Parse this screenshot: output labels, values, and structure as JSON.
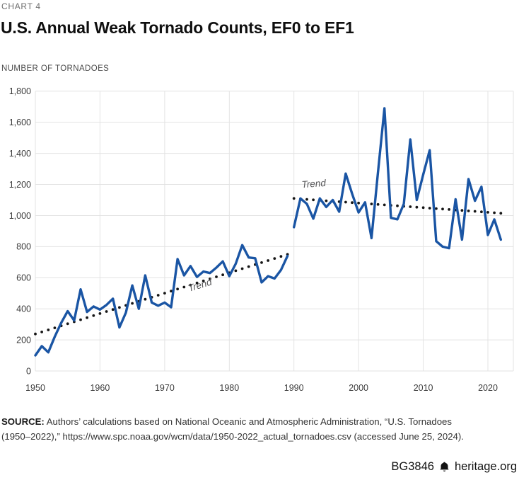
{
  "header": {
    "chart_label": "CHART 4",
    "title": "U.S. Annual Weak Tornado Counts, EF0 to EF1",
    "axis_title": "NUMBER OF TORNADOES"
  },
  "chart_data": {
    "type": "line",
    "title": "U.S. Annual Weak Tornado Counts, EF0 to EF1",
    "ylabel": "NUMBER OF TORNADOES",
    "ylim": [
      0,
      1800
    ],
    "ytick_step": 200,
    "xticks": [
      1950,
      1960,
      1970,
      1980,
      1990,
      2000,
      2010,
      2020
    ],
    "grid": true,
    "legend_position": "none",
    "line_color": "#1a55a4",
    "trend_dot_color": "#151515",
    "series": [
      {
        "name": "weak-tornado-count-1950-1989",
        "x_start": 1950,
        "values": [
          100,
          160,
          120,
          220,
          310,
          385,
          325,
          525,
          380,
          415,
          395,
          425,
          465,
          280,
          375,
          550,
          400,
          615,
          440,
          420,
          440,
          410,
          720,
          615,
          675,
          605,
          640,
          630,
          665,
          705,
          610,
          690,
          810,
          730,
          725,
          570,
          610,
          595,
          650,
          740
        ]
      },
      {
        "name": "weak-tornado-count-1990-2022",
        "x_start": 1990,
        "values": [
          925,
          1110,
          1075,
          980,
          1110,
          1055,
          1100,
          1025,
          1270,
          1140,
          1020,
          1085,
          855,
          1280,
          1690,
          985,
          975,
          1075,
          1490,
          1100,
          1265,
          1420,
          835,
          800,
          790,
          1105,
          845,
          1235,
          1095,
          1185,
          875,
          975,
          845
        ]
      }
    ],
    "trends": [
      {
        "label": "Trend",
        "x": [
          1950,
          1989
        ],
        "y": [
          238,
          750
        ]
      },
      {
        "label": "Trend",
        "x": [
          1990,
          2022
        ],
        "y": [
          1110,
          1015
        ]
      }
    ]
  },
  "footer": {
    "source_bold": "SOURCE:",
    "source_text": " Authors’ calculations based on National Oceanic and Atmospheric Administration, “U.S. Tornadoes\n(1950–2022),” https://www.spc.noaa.gov/wcm/data/1950-2022_actual_tornadoes.csv (accessed June 25, 2024).",
    "id": "BG3846",
    "site": "heritage.org"
  }
}
